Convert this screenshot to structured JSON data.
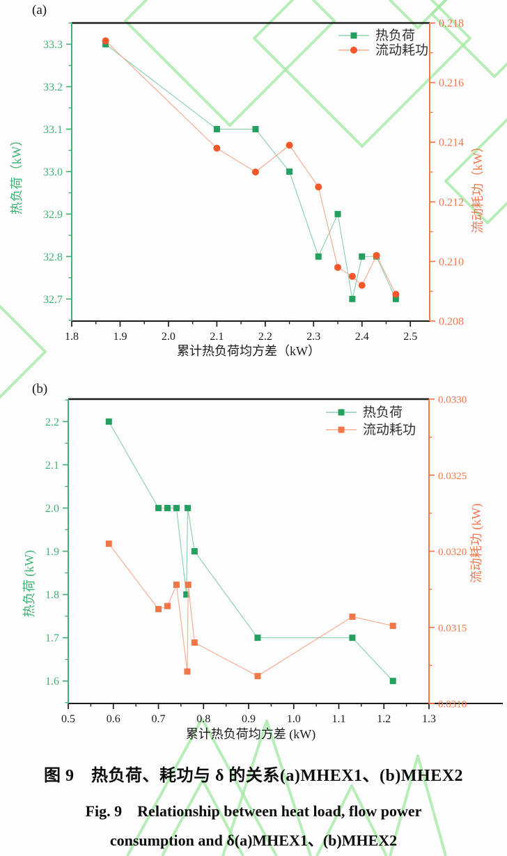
{
  "caption": {
    "line1_zh": "图 9　热负荷、耗功与 δ 的关系(a)MHEX1、(b)MHEX2",
    "line2_en": "Fig. 9　Relationship between heat load, flow power",
    "line3_en": "consumption and δ(a)MHEX1、(b)MHEX2"
  },
  "colors": {
    "green_marker": "#23a05e",
    "green_line": "#8ed2ae",
    "green_axis": "#3fb273",
    "orange_marker_a": "#f4582b",
    "orange_marker_b": "#ef7848",
    "orange_line": "#f8ad95",
    "orange_axis": "#f4764b",
    "black_axis": "#1b1b1b",
    "legend_text": "#2f2f2f",
    "watermark": "#a5e8a5"
  },
  "chart_data": [
    {
      "type": "line",
      "panel": "(a)",
      "xlabel": "累计热负荷均方差（kW）",
      "ylabel_left": "热负荷（kW）",
      "ylabel_right": "流动耗功（kW）",
      "xlim": [
        1.8,
        2.54
      ],
      "x_major_ticks": [
        1.8,
        1.9,
        2.0,
        2.1,
        2.2,
        2.3,
        2.4,
        2.5
      ],
      "x_minor_step": 0.05,
      "x_decimals": 1,
      "left_lim": [
        32.648,
        33.35
      ],
      "left_major_ticks": [
        32.7,
        32.8,
        32.9,
        33.0,
        33.1,
        33.2,
        33.3
      ],
      "left_minor_step": 0.05,
      "left_decimals": 1,
      "right_lim": [
        0.208,
        0.218
      ],
      "right_major_ticks": [
        0.208,
        0.21,
        0.212,
        0.214,
        0.216,
        0.218
      ],
      "right_minor_step": 0.001,
      "right_decimals": 3,
      "legend": [
        "热负荷",
        "流动耗功"
      ],
      "series": [
        {
          "name": "热负荷",
          "axis": "left",
          "marker": "square",
          "marker_color_key": "green_marker",
          "line_color_key": "green_line",
          "x": [
            1.87,
            2.1,
            2.18,
            2.25,
            2.31,
            2.35,
            2.38,
            2.4,
            2.43,
            2.47
          ],
          "y": [
            33.3,
            33.1,
            33.1,
            33.0,
            32.8,
            32.9,
            32.7,
            32.8,
            32.8,
            32.7
          ]
        },
        {
          "name": "流动耗功",
          "axis": "right",
          "marker": "circle",
          "marker_color_key": "orange_marker_a",
          "line_color_key": "orange_line",
          "x": [
            1.87,
            2.1,
            2.18,
            2.25,
            2.31,
            2.35,
            2.38,
            2.4,
            2.43,
            2.47
          ],
          "y": [
            0.2174,
            0.2138,
            0.213,
            0.2139,
            0.2125,
            0.2098,
            0.2095,
            0.2092,
            0.2102,
            0.2089
          ]
        }
      ]
    },
    {
      "type": "line",
      "panel": "(b)",
      "xlabel": "累计热负荷均方差 (kW)",
      "ylabel_left": "热负荷 (kW)",
      "ylabel_right": "流动耗功 (kW)",
      "xlim": [
        0.5,
        1.3
      ],
      "x_major_ticks": [
        0.5,
        0.6,
        0.7,
        0.8,
        0.9,
        1.0,
        1.1,
        1.2,
        1.3
      ],
      "x_minor_step": 0.05,
      "x_decimals": 1,
      "left_lim": [
        1.548,
        2.252
      ],
      "left_major_ticks": [
        1.6,
        1.7,
        1.8,
        1.9,
        2.0,
        2.1,
        2.2
      ],
      "left_minor_step": 0.05,
      "left_decimals": 1,
      "right_lim": [
        0.031,
        0.033
      ],
      "right_major_ticks": [
        0.031,
        0.0315,
        0.032,
        0.0325,
        0.033
      ],
      "right_minor_step": 0.00025,
      "right_decimals": 4,
      "legend": [
        "热负荷",
        "流动耗功"
      ],
      "series": [
        {
          "name": "热负荷",
          "axis": "left",
          "marker": "square",
          "marker_color_key": "green_marker",
          "line_color_key": "green_line",
          "x": [
            0.59,
            0.7,
            0.72,
            0.74,
            0.762,
            0.765,
            0.78,
            0.92,
            1.13,
            1.22
          ],
          "y": [
            2.2,
            2.0,
            2.0,
            2.0,
            1.8,
            2.0,
            1.9,
            1.7,
            1.7,
            1.6
          ]
        },
        {
          "name": "流动耗功",
          "axis": "right",
          "marker": "square",
          "marker_color_key": "orange_marker_b",
          "line_color_key": "orange_line",
          "x": [
            0.59,
            0.7,
            0.72,
            0.74,
            0.764,
            0.766,
            0.78,
            0.92,
            1.13,
            1.22
          ],
          "y": [
            0.03205,
            0.03162,
            0.03164,
            0.03178,
            0.03121,
            0.03178,
            0.0314,
            0.03118,
            0.03157,
            0.03151
          ]
        }
      ]
    }
  ]
}
